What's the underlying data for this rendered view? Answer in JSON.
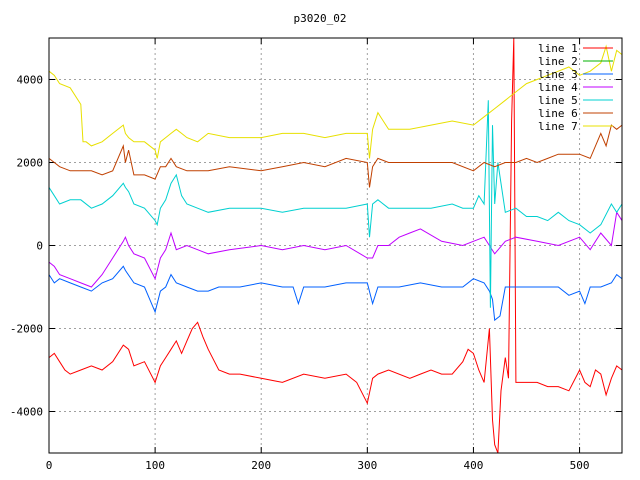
{
  "chart_data": {
    "type": "line",
    "title": "p3020_02",
    "xlabel": "",
    "ylabel": "",
    "xlim": [
      0,
      540
    ],
    "ylim": [
      -5000,
      5000
    ],
    "x_ticks": [
      0,
      100,
      200,
      300,
      400,
      500
    ],
    "y_ticks": [
      -4000,
      -2000,
      0,
      2000,
      4000
    ],
    "grid": true,
    "legend_position": "top-right",
    "series": [
      {
        "name": "line 1",
        "color": "#ff0000",
        "x": [
          0,
          5,
          10,
          15,
          20,
          30,
          40,
          50,
          60,
          70,
          75,
          80,
          90,
          100,
          105,
          110,
          115,
          120,
          125,
          130,
          135,
          140,
          145,
          150,
          160,
          170,
          180,
          200,
          220,
          240,
          260,
          280,
          290,
          300,
          305,
          310,
          320,
          340,
          350,
          360,
          370,
          380,
          390,
          395,
          400,
          405,
          410,
          415,
          418,
          420,
          423,
          426,
          430,
          433,
          436,
          438,
          440,
          445,
          450,
          460,
          470,
          480,
          490,
          500,
          505,
          510,
          515,
          520,
          525,
          530,
          535,
          540
        ],
        "y": [
          -2700,
          -2600,
          -2800,
          -3000,
          -3100,
          -3000,
          -2900,
          -3000,
          -2800,
          -2400,
          -2500,
          -2900,
          -2800,
          -3300,
          -2900,
          -2700,
          -2500,
          -2300,
          -2600,
          -2300,
          -2000,
          -1850,
          -2200,
          -2500,
          -3000,
          -3100,
          -3100,
          -3200,
          -3300,
          -3100,
          -3200,
          -3100,
          -3300,
          -3800,
          -3200,
          -3100,
          -3000,
          -3200,
          -3100,
          -3000,
          -3100,
          -3100,
          -2800,
          -2500,
          -2600,
          -3000,
          -3300,
          -2000,
          -4200,
          -4800,
          -5000,
          -3500,
          -2700,
          -3200,
          3000,
          5000,
          -3300,
          -3300,
          -3300,
          -3300,
          -3400,
          -3400,
          -3500,
          -3000,
          -3300,
          -3400,
          -3000,
          -3100,
          -3600,
          -3200,
          -2900,
          -3000
        ]
      },
      {
        "name": "line 2",
        "color": "#00b000",
        "x": [],
        "y": []
      },
      {
        "name": "line 3",
        "color": "#0060ff",
        "x": [
          0,
          5,
          10,
          20,
          30,
          40,
          50,
          60,
          70,
          72,
          80,
          90,
          100,
          105,
          110,
          115,
          120,
          130,
          140,
          150,
          160,
          180,
          200,
          220,
          230,
          235,
          240,
          260,
          280,
          300,
          305,
          310,
          330,
          350,
          370,
          390,
          400,
          410,
          415,
          418,
          420,
          425,
          430,
          440,
          460,
          480,
          490,
          500,
          505,
          510,
          520,
          530,
          535,
          540
        ],
        "y": [
          -700,
          -900,
          -800,
          -900,
          -1000,
          -1100,
          -900,
          -800,
          -500,
          -600,
          -900,
          -1000,
          -1600,
          -1100,
          -1000,
          -700,
          -900,
          -1000,
          -1100,
          -1100,
          -1000,
          -1000,
          -900,
          -1000,
          -1000,
          -1400,
          -1000,
          -1000,
          -900,
          -900,
          -1400,
          -1000,
          -1000,
          -900,
          -1000,
          -1000,
          -800,
          -900,
          -1100,
          -1300,
          -1800,
          -1700,
          -1000,
          -1000,
          -1000,
          -1000,
          -1200,
          -1100,
          -1400,
          -1000,
          -1000,
          -900,
          -700,
          -800
        ]
      },
      {
        "name": "line 4",
        "color": "#c000ff",
        "x": [
          0,
          5,
          10,
          20,
          30,
          40,
          50,
          60,
          70,
          72,
          75,
          80,
          90,
          100,
          105,
          110,
          115,
          120,
          130,
          140,
          150,
          170,
          200,
          220,
          240,
          260,
          280,
          300,
          305,
          310,
          320,
          330,
          340,
          350,
          370,
          390,
          400,
          410,
          415,
          420,
          430,
          440,
          460,
          480,
          500,
          510,
          520,
          530,
          535,
          540
        ],
        "y": [
          -400,
          -500,
          -700,
          -800,
          -900,
          -1000,
          -700,
          -300,
          100,
          200,
          0,
          -200,
          -300,
          -800,
          -300,
          -100,
          300,
          -100,
          0,
          -100,
          -200,
          -100,
          0,
          -100,
          0,
          -100,
          0,
          -300,
          -300,
          0,
          0,
          200,
          300,
          400,
          100,
          0,
          100,
          200,
          0,
          -200,
          100,
          200,
          100,
          0,
          200,
          -100,
          300,
          0,
          800,
          600
        ]
      },
      {
        "name": "line 5",
        "color": "#00d0d0",
        "x": [
          0,
          5,
          10,
          20,
          30,
          40,
          50,
          60,
          70,
          72,
          75,
          80,
          90,
          100,
          102,
          105,
          110,
          115,
          120,
          125,
          130,
          140,
          150,
          170,
          200,
          220,
          240,
          260,
          280,
          300,
          302,
          305,
          310,
          320,
          340,
          360,
          380,
          390,
          400,
          405,
          410,
          414,
          416,
          418,
          420,
          423,
          430,
          440,
          450,
          460,
          470,
          480,
          490,
          500,
          510,
          520,
          530,
          535,
          540
        ],
        "y": [
          1400,
          1200,
          1000,
          1100,
          1100,
          900,
          1000,
          1200,
          1500,
          1400,
          1300,
          1000,
          900,
          600,
          500,
          900,
          1100,
          1500,
          1700,
          1200,
          1000,
          900,
          800,
          900,
          900,
          800,
          900,
          900,
          900,
          1000,
          200,
          1000,
          1100,
          900,
          900,
          900,
          1000,
          900,
          900,
          1200,
          1000,
          3500,
          -1500,
          2900,
          1000,
          2000,
          800,
          900,
          700,
          700,
          600,
          800,
          600,
          500,
          300,
          500,
          1000,
          800,
          1000
        ]
      },
      {
        "name": "line 6",
        "color": "#c04000",
        "x": [
          0,
          5,
          10,
          20,
          30,
          40,
          50,
          60,
          70,
          72,
          75,
          80,
          90,
          100,
          105,
          110,
          115,
          120,
          130,
          140,
          150,
          170,
          200,
          220,
          240,
          260,
          280,
          300,
          302,
          305,
          310,
          320,
          340,
          360,
          380,
          400,
          410,
          420,
          430,
          440,
          450,
          460,
          470,
          480,
          490,
          500,
          510,
          520,
          525,
          530,
          535,
          540
        ],
        "y": [
          2100,
          2000,
          1900,
          1800,
          1800,
          1800,
          1700,
          1800,
          2400,
          2000,
          2300,
          1700,
          1700,
          1600,
          1900,
          1900,
          2100,
          1900,
          1800,
          1800,
          1800,
          1900,
          1800,
          1900,
          2000,
          1900,
          2100,
          2000,
          1400,
          1900,
          2100,
          2000,
          2000,
          2000,
          2000,
          1800,
          2000,
          1900,
          2000,
          2000,
          2100,
          2000,
          2100,
          2200,
          2200,
          2200,
          2100,
          2700,
          2400,
          2900,
          2800,
          2900
        ]
      },
      {
        "name": "line 7",
        "color": "#e8e000",
        "x": [
          0,
          5,
          10,
          20,
          30,
          32,
          35,
          40,
          50,
          60,
          70,
          72,
          75,
          80,
          90,
          100,
          102,
          105,
          110,
          115,
          120,
          125,
          130,
          140,
          150,
          170,
          200,
          220,
          240,
          260,
          280,
          300,
          302,
          305,
          310,
          320,
          340,
          360,
          380,
          400,
          410,
          420,
          430,
          440,
          450,
          460,
          470,
          480,
          490,
          500,
          510,
          520,
          525,
          530,
          535,
          540
        ],
        "y": [
          4200,
          4100,
          3900,
          3800,
          3400,
          2500,
          2500,
          2400,
          2500,
          2700,
          2900,
          2700,
          2600,
          2500,
          2500,
          2300,
          2100,
          2500,
          2600,
          2700,
          2800,
          2700,
          2600,
          2500,
          2700,
          2600,
          2600,
          2700,
          2700,
          2600,
          2700,
          2700,
          2100,
          2800,
          3200,
          2800,
          2800,
          2900,
          3000,
          2900,
          3100,
          3300,
          3500,
          3700,
          3900,
          4000,
          4100,
          4200,
          4300,
          4100,
          4200,
          4400,
          4800,
          4200,
          4700,
          4600
        ]
      }
    ]
  }
}
